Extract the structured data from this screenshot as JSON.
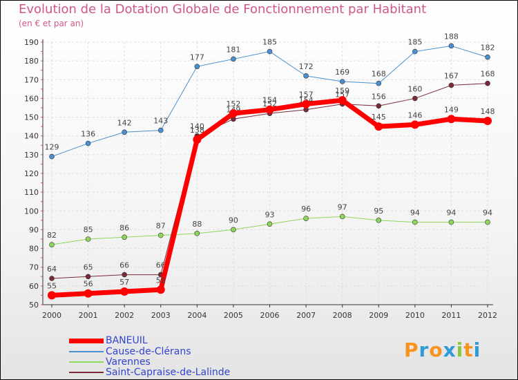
{
  "chart_data": {
    "type": "line",
    "title": "Evolution de la Dotation Globale de Fonctionnement par Habitant",
    "subtitle": "(en € et par an)",
    "xlabel": "",
    "ylabel": "",
    "categories": [
      "2000",
      "2001",
      "2002",
      "2003",
      "2004",
      "2005",
      "2006",
      "2007",
      "2008",
      "2009",
      "2010",
      "2011",
      "2012"
    ],
    "ylim": [
      50,
      190
    ],
    "yticks": [
      50,
      60,
      70,
      80,
      90,
      100,
      110,
      120,
      130,
      140,
      150,
      160,
      170,
      180,
      190
    ],
    "grid": true,
    "legend_position": "bottom-left",
    "series": [
      {
        "name": "Cause-de-Clérans",
        "color": "#4a8fd0",
        "width": 1,
        "marker": 3.5,
        "values": [
          129,
          136,
          142,
          143,
          177,
          181,
          185,
          172,
          169,
          168,
          185,
          188,
          182
        ]
      },
      {
        "name": "Varennes",
        "color": "#8ed65a",
        "width": 1,
        "marker": 3.5,
        "values": [
          82,
          85,
          86,
          87,
          88,
          90,
          93,
          96,
          97,
          95,
          94,
          94,
          94
        ]
      },
      {
        "name": "Saint-Capraise-de-Lalinde",
        "color": "#7a2a36",
        "width": 1,
        "marker": 3.5,
        "values": [
          64,
          65,
          66,
          66,
          140,
          149,
          152,
          154,
          157,
          156,
          160,
          167,
          168
        ]
      },
      {
        "name": "BANEUIL",
        "color": "#ff0000",
        "width": 7,
        "marker": 6,
        "values": [
          55,
          56,
          57,
          58,
          138,
          152,
          154,
          157,
          159,
          145,
          146,
          149,
          148
        ]
      }
    ]
  },
  "legend": [
    {
      "name": "BANEUIL",
      "color": "#ff0000",
      "thickness": 7
    },
    {
      "name": "Cause-de-Clérans",
      "color": "#4a8fd0",
      "thickness": 2
    },
    {
      "name": "Varennes",
      "color": "#8ed65a",
      "thickness": 2
    },
    {
      "name": "Saint-Capraise-de-Lalinde",
      "color": "#7a2a36",
      "thickness": 2
    }
  ],
  "logo": {
    "letters": [
      "P",
      "r",
      "o",
      "x",
      "i",
      "t",
      "i"
    ],
    "colors": [
      "#f7941d",
      "#2e9ad6",
      "#f7941d",
      "#2e9ad6",
      "#8cc63f",
      "#f7941d",
      "#2e9ad6"
    ]
  }
}
